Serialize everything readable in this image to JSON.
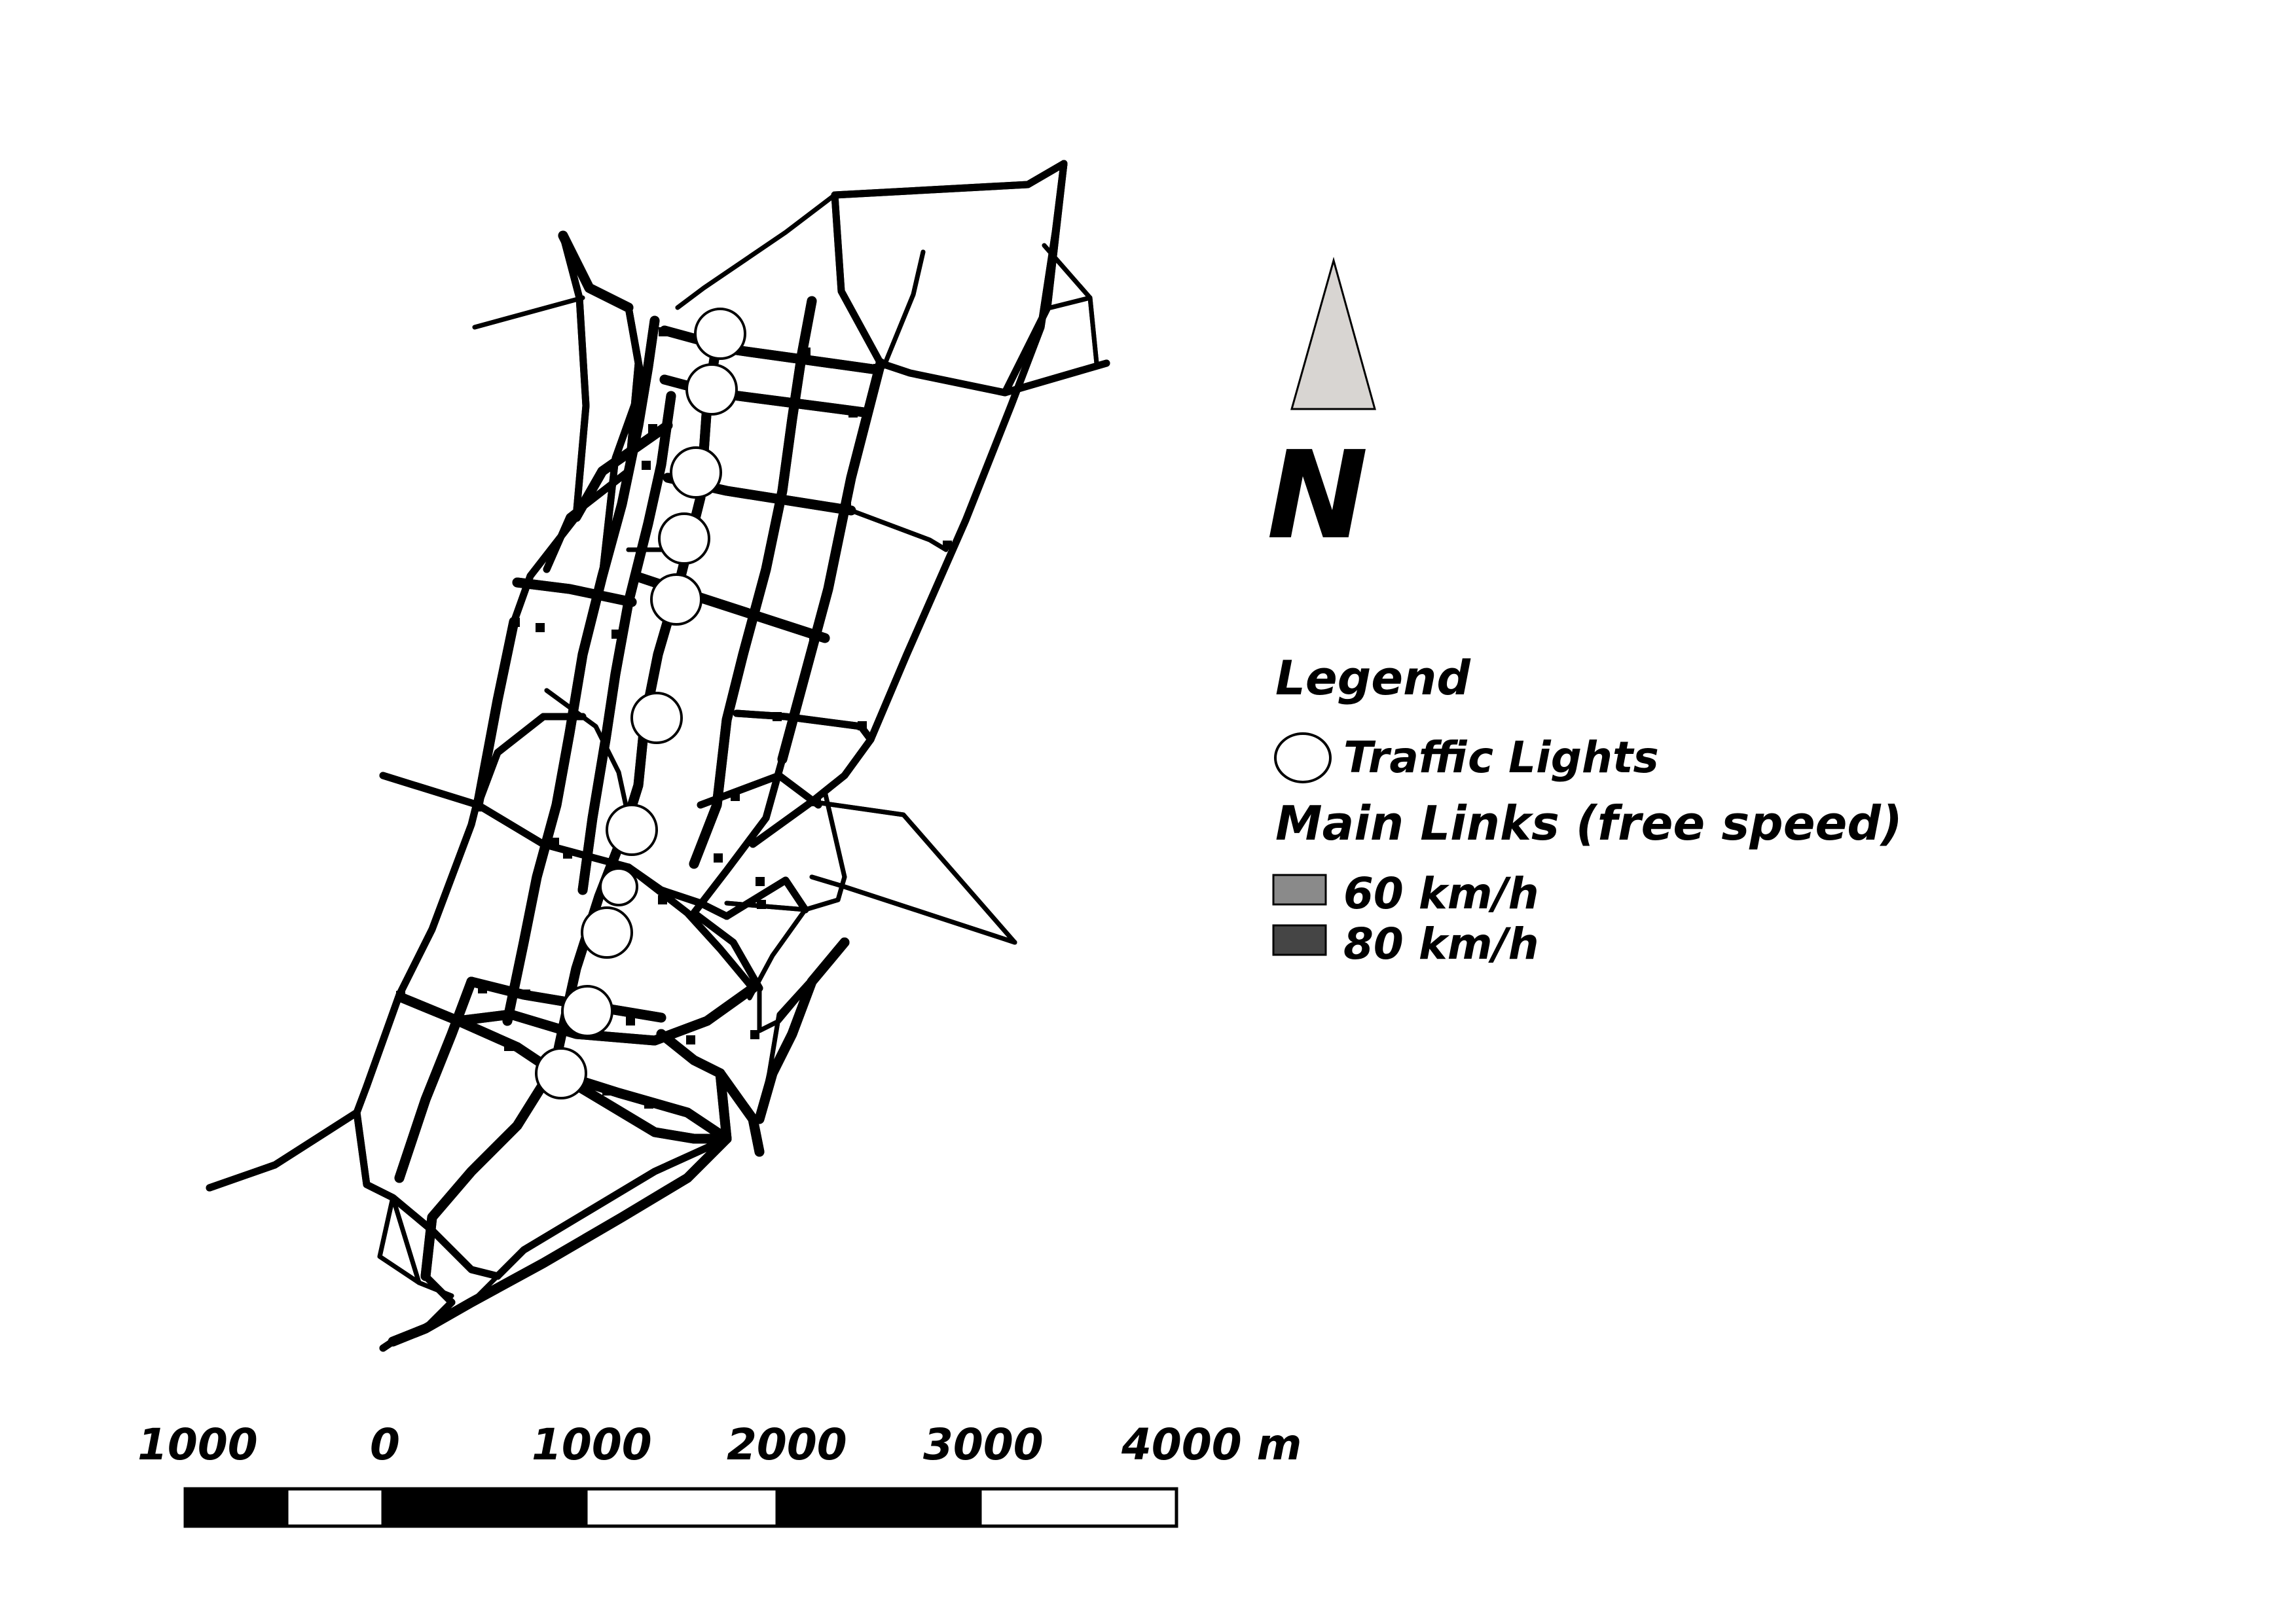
{
  "north_arrow": {
    "label": "N",
    "fill": "#d8d5d2"
  },
  "legend": {
    "title": "Legend",
    "traffic_lights_label": "Traffic Lights",
    "main_links_title": "Main Links (free speed)",
    "link_classes": [
      {
        "label": "60 km/h",
        "color": "#8a8a8a"
      },
      {
        "label": "80 km/h",
        "color": "#454545"
      }
    ]
  },
  "scale_bar": {
    "ticks": [
      "1000",
      "0",
      "1000",
      "2000",
      "3000",
      "4000 m"
    ]
  },
  "colors": {
    "road": "#000000",
    "road_casing": "#ffffff",
    "signal_fill": "#ffffff"
  }
}
